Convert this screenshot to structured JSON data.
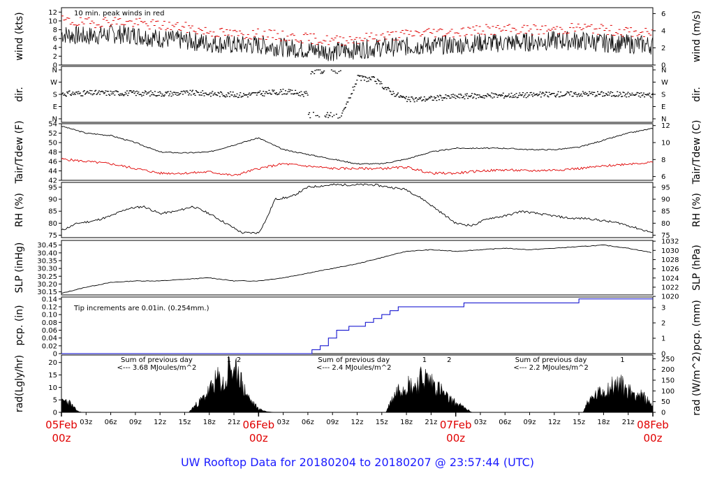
{
  "title": "UW Rooftop Data for 20180204  to  20180207 @ 23:57:44  (UTC)",
  "x_axis": {
    "hour_ticks": [
      "03z",
      "06z",
      "09z",
      "12z",
      "15z",
      "18z",
      "21z",
      "",
      "03z",
      "06z",
      "09z",
      "12z",
      "15z",
      "18z",
      "21z",
      "",
      "03z",
      "06z",
      "09z",
      "12z",
      "15z",
      "18z",
      "21z"
    ],
    "date_labels": [
      {
        "date": "05Feb",
        "time": "00z",
        "hour": 0
      },
      {
        "date": "06Feb",
        "time": "00z",
        "hour": 24
      },
      {
        "date": "07Feb",
        "time": "00z",
        "hour": 48
      },
      {
        "date": "08Feb",
        "time": "00z",
        "hour": 72
      }
    ]
  },
  "colors": {
    "line": "#000000",
    "peak": "#e00000",
    "dew": "#e00000",
    "precip": "#0000cc",
    "annot": "#a020c0",
    "title": "#1a1aff",
    "date": "#e00000"
  },
  "chart_data": [
    {
      "id": "wind",
      "type": "line",
      "ylabel_left": "wind (kts)",
      "ylabel_right": "wind (m/s)",
      "ylim": [
        0,
        13
      ],
      "yticks_left": [
        "0",
        "2",
        "4",
        "6",
        "8",
        "10",
        "12"
      ],
      "yticks_right": [
        "0",
        "2",
        "4",
        "6"
      ],
      "annotation": "10 min. peak winds in red",
      "series": [
        {
          "x": [
            0,
            3,
            6,
            9,
            12,
            15,
            18,
            21,
            24,
            27,
            30,
            33,
            36,
            39,
            42,
            45,
            48,
            51,
            54,
            57,
            60,
            63,
            66,
            69,
            72
          ],
          "values": [
            7,
            6.5,
            7,
            6.8,
            6,
            5.5,
            5,
            4.5,
            4.5,
            4,
            3.5,
            3,
            3.5,
            4,
            4.2,
            4.5,
            4.5,
            5,
            5,
            5.2,
            5.5,
            5.5,
            5,
            4.8,
            4.5
          ]
        },
        {
          "name": "10 min. peak winds",
          "x": [
            0,
            3,
            6,
            9,
            12,
            15,
            18,
            21,
            24,
            27,
            30,
            33,
            36,
            39,
            42,
            45,
            48,
            51,
            54,
            57,
            60,
            63,
            66,
            69,
            72
          ],
          "values": [
            10,
            9.5,
            10,
            9.5,
            9,
            8.5,
            7.5,
            7,
            7,
            6.5,
            6,
            5.5,
            6,
            6.5,
            7,
            7.5,
            7.5,
            8,
            8,
            8,
            8,
            8.5,
            8,
            7.5,
            7
          ]
        }
      ]
    },
    {
      "id": "dir",
      "type": "scatter",
      "ylabel_left": "dir.",
      "ylabel_right": "dir.",
      "yticks_left": [
        "N",
        "W",
        "S",
        "E",
        "N"
      ],
      "yticks_right": [
        "N",
        "W",
        "S",
        "E",
        "N"
      ],
      "series": [
        {
          "x": [
            0,
            4,
            8,
            12,
            16,
            20,
            22,
            24,
            27,
            30,
            33,
            34,
            36,
            38,
            40,
            42,
            45,
            48,
            52,
            56,
            60,
            64,
            68,
            72
          ],
          "values": [
            185,
            190,
            190,
            185,
            190,
            180,
            175,
            185,
            200,
            180,
            360,
            10,
            300,
            290,
            200,
            140,
            150,
            165,
            170,
            175,
            180,
            185,
            180,
            175
          ]
        }
      ]
    },
    {
      "id": "temp",
      "type": "line",
      "ylabel_left": "Tair/Tdew (F)",
      "ylabel_right": "Tair/Tdew (C)",
      "ylim": [
        42,
        54
      ],
      "yticks_left": [
        "42",
        "44",
        "46",
        "48",
        "50",
        "52",
        "54"
      ],
      "yticks_right": [
        "6",
        "8",
        "10",
        "12"
      ],
      "series": [
        {
          "name": "Tair",
          "x": [
            0,
            3,
            6,
            9,
            12,
            15,
            18,
            21,
            24,
            27,
            30,
            33,
            36,
            39,
            42,
            45,
            48,
            51,
            54,
            57,
            60,
            63,
            66,
            69,
            72
          ],
          "values": [
            53.5,
            52,
            51.5,
            50,
            48,
            47.8,
            48,
            49.5,
            51,
            48.5,
            47.5,
            46.5,
            45.5,
            45.5,
            46.5,
            48,
            48.8,
            48.8,
            48.8,
            48.5,
            48.5,
            49,
            50.5,
            52,
            53
          ]
        },
        {
          "name": "Tdew",
          "x": [
            0,
            3,
            6,
            9,
            12,
            15,
            18,
            21,
            24,
            27,
            30,
            33,
            36,
            39,
            42,
            45,
            48,
            51,
            54,
            57,
            60,
            63,
            66,
            69,
            72
          ],
          "values": [
            46.5,
            46,
            45.5,
            44.5,
            43.5,
            43.5,
            43.8,
            43,
            44.5,
            45.5,
            45,
            44.5,
            44.5,
            44.5,
            44.8,
            43.5,
            43.5,
            44,
            44.2,
            44,
            44.2,
            44.5,
            45,
            45.5,
            45.8
          ]
        }
      ]
    },
    {
      "id": "rh",
      "type": "line",
      "ylabel_left": "RH (%)",
      "ylabel_right": "RH (%)",
      "ylim": [
        74,
        97
      ],
      "yticks_left": [
        "75",
        "80",
        "85",
        "90",
        "95"
      ],
      "yticks_right": [
        "75",
        "80",
        "85",
        "90",
        "95"
      ],
      "series": [
        {
          "x": [
            0,
            2,
            4,
            6,
            8,
            10,
            12,
            14,
            16,
            18,
            20,
            22,
            24,
            25,
            26,
            28,
            30,
            33,
            36,
            38,
            40,
            42,
            44,
            46,
            48,
            50,
            52,
            54,
            56,
            58,
            60,
            62,
            64,
            66,
            68,
            70,
            72
          ],
          "values": [
            77,
            80,
            81,
            83,
            86,
            87,
            84,
            85,
            87,
            84,
            80,
            76,
            76,
            82,
            90,
            91,
            95,
            96,
            96,
            96,
            95,
            94,
            90,
            85,
            80,
            79,
            82,
            83,
            85,
            84,
            83,
            82,
            82,
            81,
            80,
            78,
            76
          ]
        }
      ]
    },
    {
      "id": "slp",
      "type": "line",
      "ylabel_left": "SLP (inHg)",
      "ylabel_right": "SLP (hPa)",
      "ylim": [
        30.13,
        30.48
      ],
      "yticks_left": [
        "30.15",
        "30.20",
        "30.25",
        "30.30",
        "30.35",
        "30.40",
        "30.45"
      ],
      "yticks_right": [
        "1020",
        "1022",
        "1024",
        "1026",
        "1028",
        "1030",
        "1032"
      ],
      "series": [
        {
          "x": [
            0,
            3,
            6,
            9,
            12,
            15,
            18,
            21,
            24,
            27,
            30,
            33,
            36,
            39,
            42,
            45,
            48,
            51,
            54,
            57,
            60,
            63,
            66,
            69,
            72
          ],
          "values": [
            30.14,
            30.18,
            30.21,
            30.22,
            30.22,
            30.23,
            30.24,
            30.22,
            30.22,
            30.24,
            30.27,
            30.3,
            30.33,
            30.37,
            30.41,
            30.42,
            30.41,
            30.42,
            30.43,
            30.42,
            30.43,
            30.44,
            30.45,
            30.43,
            30.4
          ]
        }
      ]
    },
    {
      "id": "pcp",
      "type": "line",
      "ylabel_left": "pcp. (in)",
      "ylabel_right": "pcp. (mm)",
      "ylim": [
        0,
        0.145
      ],
      "yticks_left": [
        "0",
        "0.02",
        "0.04",
        "0.06",
        "0.08",
        "0.10",
        "0.12",
        "0.14"
      ],
      "yticks_right": [
        "0",
        "1",
        "2",
        "3"
      ],
      "annotation": "Tip increments are 0.01in. (0.254mm.)",
      "series": [
        {
          "x": [
            0,
            29.5,
            30.5,
            31.5,
            32.5,
            33.5,
            35,
            37,
            38,
            39,
            40,
            41,
            42,
            49,
            63,
            72
          ],
          "values": [
            0,
            0,
            0.01,
            0.02,
            0.04,
            0.06,
            0.07,
            0.08,
            0.09,
            0.1,
            0.11,
            0.12,
            0.12,
            0.13,
            0.14,
            0.14
          ]
        }
      ]
    },
    {
      "id": "rad",
      "type": "area",
      "ylabel_left": "rad(Lgly/hr)",
      "ylabel_right": "rad (W/m^2)",
      "ylim": [
        0,
        23
      ],
      "yticks_left": [
        "0",
        "5",
        "10",
        "15",
        "20"
      ],
      "yticks_right": [
        "0",
        "50",
        "100",
        "150",
        "200",
        "250"
      ],
      "annotations": [
        {
          "line1": "Sum of previous day",
          "line2": "<--- 3.68 MJoules/m^2",
          "hour": 11
        },
        {
          "line1": "Sum of previous day",
          "line2": "<--- 2.4 MJoules/m^2",
          "hour": 35
        },
        {
          "line1": "Sum of previous day",
          "line2": "<--- 2.2 MJoules/m^2",
          "hour": 59
        }
      ],
      "markers": [
        {
          "label": "1",
          "hour": 20.4
        },
        {
          "label": "2",
          "hour": 21.6
        },
        {
          "label": "1",
          "hour": 44.2
        },
        {
          "label": "2",
          "hour": 47.2
        },
        {
          "label": "1",
          "hour": 68.3
        }
      ],
      "series": [
        {
          "x": [
            0,
            0.5,
            1,
            1.5,
            2,
            2.5,
            3,
            15.5,
            16,
            17,
            18,
            19,
            20,
            20.5,
            21,
            21.5,
            22,
            23,
            24,
            25,
            26,
            39.5,
            40,
            41,
            42,
            43,
            44,
            45,
            46,
            47,
            48,
            49,
            50,
            63.5,
            64,
            65,
            66,
            67,
            68,
            69,
            70,
            71,
            72
          ],
          "values": [
            4,
            5,
            4,
            2,
            0.5,
            0,
            0,
            0,
            2,
            5,
            9,
            14,
            11,
            22,
            13,
            20,
            11,
            5,
            1.5,
            0.3,
            0,
            0,
            4,
            10,
            12,
            11,
            15,
            13,
            10,
            6,
            4,
            2,
            0,
            0,
            4,
            7,
            9,
            11,
            12,
            9,
            8,
            6,
            3
          ]
        }
      ]
    }
  ]
}
